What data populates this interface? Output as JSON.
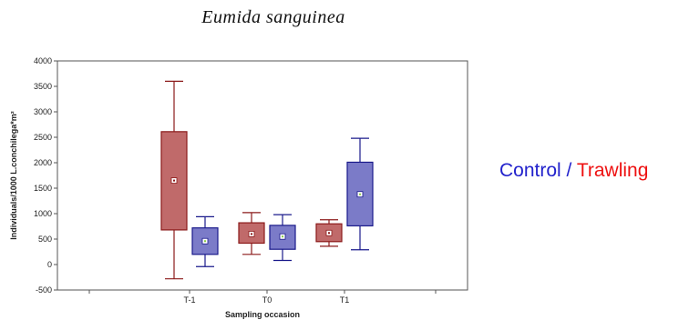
{
  "chart_data": {
    "type": "box",
    "title": "Eumida sanguinea",
    "xlabel": "Sampling occasion",
    "ylabel": "Individuals/1000 L.conchilega*m²",
    "categories": [
      "T-1",
      "T0",
      "T1"
    ],
    "ylim": [
      -500,
      4000
    ],
    "yticks": [
      -500,
      0,
      500,
      1000,
      1500,
      2000,
      2500,
      3000,
      3500,
      4000
    ],
    "grid": false,
    "legend": {
      "control_label": "Control",
      "separator": " / ",
      "trawling_label": "Trawling",
      "placement": "right"
    },
    "series": [
      {
        "name": "Trawling",
        "color": "#c06a6a",
        "edge": "#8b1a1a",
        "boxes": [
          {
            "category": "T-1",
            "min": -280,
            "q1": 680,
            "median": 1650,
            "q3": 2610,
            "max": 3600
          },
          {
            "category": "T0",
            "min": 200,
            "q1": 420,
            "median": 600,
            "q3": 820,
            "max": 1020
          },
          {
            "category": "T1",
            "min": 360,
            "q1": 450,
            "median": 620,
            "q3": 800,
            "max": 880
          }
        ]
      },
      {
        "name": "Control",
        "color": "#7b7bc8",
        "edge": "#1a1a8b",
        "boxes": [
          {
            "category": "T-1",
            "min": -40,
            "q1": 200,
            "median": 460,
            "q3": 720,
            "max": 940
          },
          {
            "category": "T0",
            "min": 80,
            "q1": 300,
            "median": 550,
            "q3": 770,
            "max": 980
          },
          {
            "category": "T1",
            "min": 290,
            "q1": 760,
            "median": 1380,
            "q3": 2010,
            "max": 2480
          }
        ]
      }
    ]
  },
  "colors": {
    "control_text": "#2222cc",
    "trawling_text": "#ee1111",
    "plot_frame": "#555555"
  }
}
